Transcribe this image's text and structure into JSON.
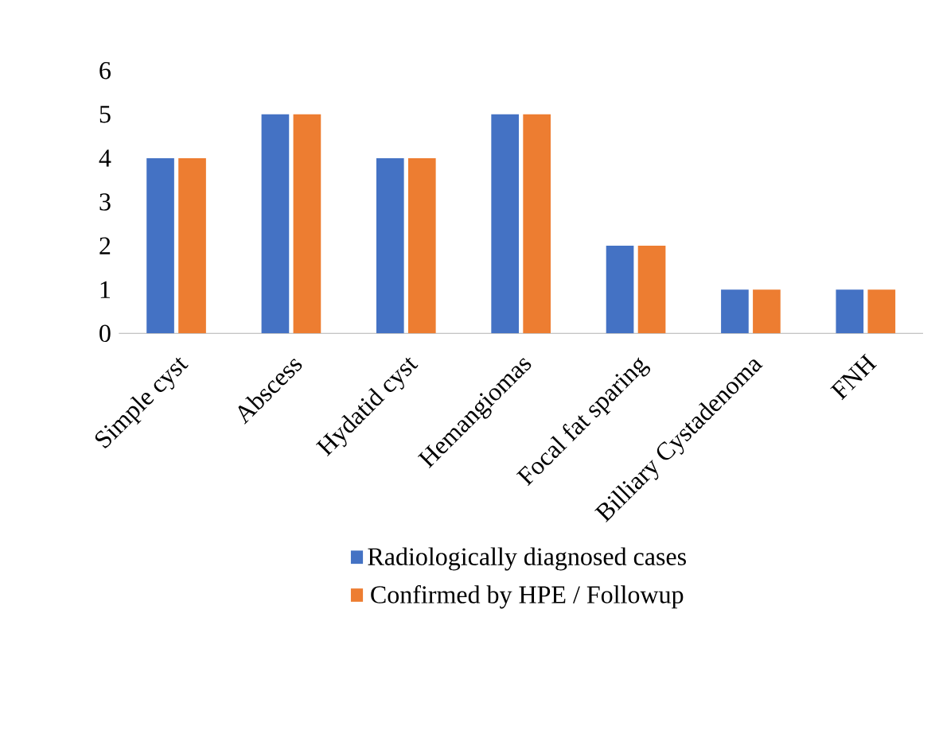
{
  "chart_data": {
    "type": "bar",
    "categories": [
      "Simple cyst",
      "Abscess",
      "Hydatid cyst",
      "Hemangiomas",
      "Focal fat sparing",
      "Billiary Cystadenoma",
      "FNH"
    ],
    "series": [
      {
        "name": "Radiologically diagnosed cases",
        "color": "#4472c4",
        "values": [
          4,
          5,
          4,
          5,
          2,
          1,
          1
        ]
      },
      {
        "name": "Confirmed by HPE / Followup",
        "color": "#ed7d31",
        "values": [
          4,
          5,
          4,
          5,
          2,
          1,
          1
        ]
      }
    ],
    "ylim": [
      0,
      6
    ],
    "yticks": [
      0,
      1,
      2,
      3,
      4,
      5,
      6
    ],
    "grid": false,
    "legend": "bottom"
  }
}
